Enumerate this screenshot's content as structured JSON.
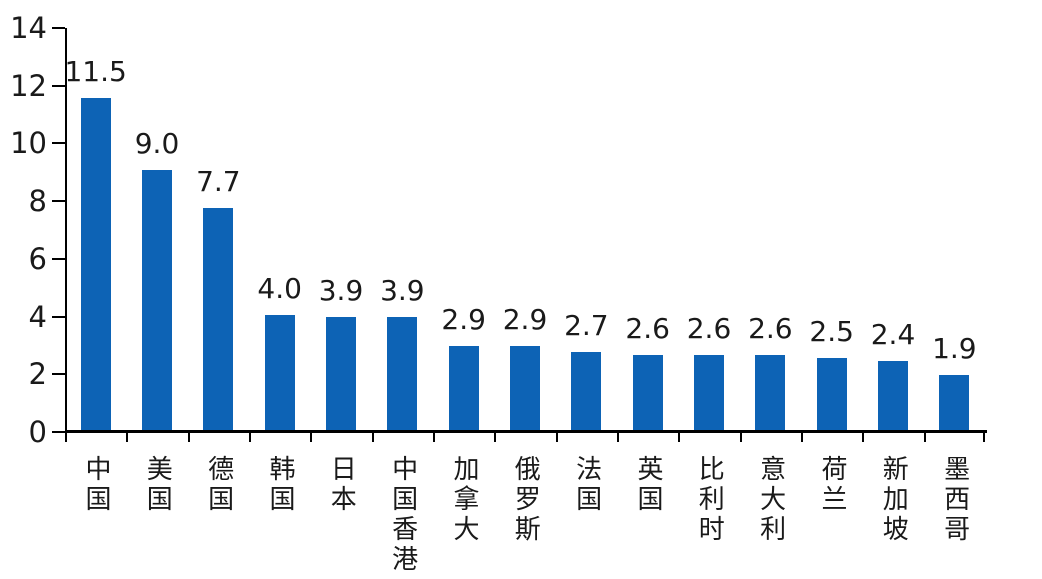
{
  "chart_data": {
    "type": "bar",
    "categories": [
      "中国",
      "美国",
      "德国",
      "韩国",
      "日本",
      "中国香港",
      "加拿大",
      "俄罗斯",
      "法国",
      "英国",
      "比利时",
      "意大利",
      "荷兰",
      "新加坡",
      "墨西哥"
    ],
    "values": [
      11.5,
      9.0,
      7.7,
      4.0,
      3.9,
      3.9,
      2.9,
      2.9,
      2.7,
      2.6,
      2.6,
      2.6,
      2.5,
      2.4,
      1.9
    ],
    "value_labels": [
      "11.5",
      "9.0",
      "7.7",
      "4.0",
      "3.9",
      "3.9",
      "2.9",
      "2.9",
      "2.7",
      "2.6",
      "2.6",
      "2.6",
      "2.5",
      "2.4",
      "1.9"
    ],
    "title": "",
    "xlabel": "",
    "ylabel": "",
    "ylim": [
      0,
      14
    ],
    "yticks": [
      0,
      2,
      4,
      6,
      8,
      10,
      12,
      14
    ],
    "ytick_labels": [
      "0",
      "2",
      "4",
      "6",
      "8",
      "10",
      "12",
      "14"
    ],
    "grid": false,
    "legend_position": "none",
    "bar_color": "#0d63b5",
    "axis_color": "#000000",
    "text_color": "#1a1a1a",
    "background_color": "#ffffff"
  }
}
